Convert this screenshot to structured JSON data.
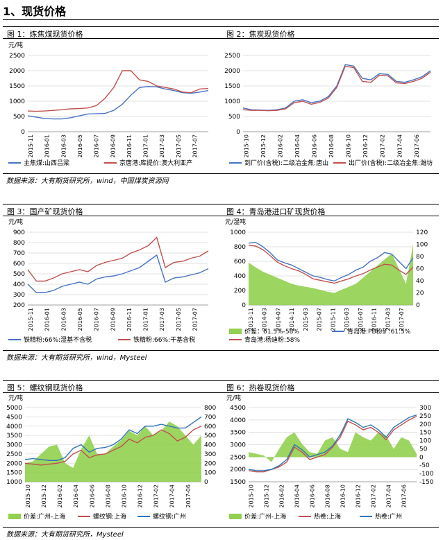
{
  "heading": "1、现货价格",
  "sources": [
    "数据来源：大有期货研究所，wind，中国煤炭资源网",
    "数据来源：大有期货研究所，wind，Mysteel",
    "数据来源：大有期货研究所，Mysteel"
  ],
  "chart_data": [
    {
      "id": "c1",
      "type": "line",
      "title": "图 1：炼焦煤现货价格",
      "unit": "元/吨",
      "ylim": [
        0,
        2500
      ],
      "yticks": [
        0,
        500,
        1000,
        1500,
        2000,
        2500
      ],
      "xticks": [
        "2015-11",
        "2016-01",
        "2016-03",
        "2016-05",
        "2016-07",
        "2016-09",
        "2016-11",
        "2017-01",
        "2017-03",
        "2017-05",
        "2017-07"
      ],
      "n": 22,
      "series": [
        {
          "name": "主焦煤:山西吕梁",
          "color": "#4472c4",
          "values": [
            520,
            480,
            430,
            420,
            420,
            460,
            520,
            580,
            590,
            600,
            700,
            900,
            1200,
            1450,
            1480,
            1470,
            1400,
            1350,
            1280,
            1260,
            1300,
            1350
          ]
        },
        {
          "name": "京唐港:库提价:澳大利亚产",
          "color": "#c0504d",
          "values": [
            680,
            670,
            680,
            700,
            720,
            750,
            760,
            780,
            860,
            1100,
            1450,
            2000,
            2000,
            1700,
            1650,
            1500,
            1450,
            1400,
            1300,
            1280,
            1400,
            1420
          ]
        }
      ]
    },
    {
      "id": "c2",
      "type": "line",
      "title": "图 2：焦炭现货价格",
      "unit": "",
      "ylim": [
        0,
        2500
      ],
      "yticks": [
        0,
        500,
        1000,
        1500,
        2000,
        2500
      ],
      "xticks": [
        "2015-10",
        "2015-12",
        "2016-02",
        "2016-04",
        "2016-06",
        "2016-08",
        "2016-10",
        "2016-12",
        "2017-02",
        "2017-04",
        "2017-06"
      ],
      "n": 23,
      "series": [
        {
          "name": "到厂价(含税):二级冶金焦:唐山",
          "color": "#4472c4",
          "values": [
            780,
            720,
            710,
            700,
            720,
            780,
            1000,
            1050,
            950,
            1000,
            1150,
            1500,
            2200,
            2150,
            1750,
            1700,
            1900,
            1880,
            1650,
            1620,
            1700,
            1800,
            2000
          ]
        },
        {
          "name": "出厂价(含税):二级冶金焦:潍坊",
          "color": "#c0504d",
          "values": [
            720,
            700,
            700,
            690,
            700,
            750,
            950,
            1000,
            900,
            960,
            1100,
            1450,
            2150,
            2100,
            1650,
            1620,
            1850,
            1830,
            1600,
            1580,
            1650,
            1750,
            1950
          ]
        }
      ]
    },
    {
      "id": "c3",
      "type": "line",
      "title": "图 3：国产矿现货价格",
      "unit": "元/吨",
      "ylim": [
        200,
        900
      ],
      "yticks": [
        200,
        300,
        400,
        500,
        600,
        700,
        800,
        900
      ],
      "xticks": [
        "2015-11",
        "2016-01",
        "2016-03",
        "2016-05",
        "2016-07",
        "2016-09",
        "2016-11",
        "2017-01",
        "2017-03",
        "2017-05",
        "2017-07"
      ],
      "n": 22,
      "series": [
        {
          "name": "铁精粉:66%:湿基不含税",
          "color": "#4472c4",
          "values": [
            400,
            320,
            320,
            340,
            380,
            400,
            420,
            400,
            450,
            470,
            480,
            500,
            530,
            560,
            620,
            680,
            420,
            460,
            470,
            490,
            510,
            550
          ]
        },
        {
          "name": "铁精粉:66%:干基含税",
          "color": "#c0504d",
          "values": [
            540,
            430,
            430,
            460,
            500,
            520,
            540,
            520,
            580,
            610,
            630,
            650,
            700,
            730,
            770,
            850,
            560,
            610,
            620,
            650,
            670,
            720
          ]
        }
      ]
    },
    {
      "id": "c4",
      "type": "line",
      "title": "图 4：青岛港进口矿现货价格",
      "unit": "元/湿吨",
      "ylim": [
        0,
        1000
      ],
      "yticks": [
        0,
        200,
        400,
        600,
        800,
        1000
      ],
      "y2lim": [
        0,
        120
      ],
      "y2ticks": [
        0,
        20,
        40,
        60,
        80,
        100,
        120
      ],
      "xticks": [
        "2013-11",
        "2014-03",
        "2014-07",
        "2014-11",
        "2015-03",
        "2015-07",
        "2015-11",
        "2016-03",
        "2016-07",
        "2016-11",
        "2017-03",
        "2017-07"
      ],
      "n": 24,
      "series": [
        {
          "name": "价差：61.5%-58%",
          "color": "#92d050",
          "axis": "right",
          "kind": "area",
          "values": [
            70,
            62,
            55,
            50,
            45,
            40,
            35,
            32,
            30,
            28,
            25,
            22,
            20,
            25,
            30,
            35,
            45,
            55,
            65,
            75,
            85,
            60,
            35,
            100
          ]
        },
        {
          "name": "青岛港:PB粉矿:61.5%",
          "color": "#4472c4",
          "values": [
            850,
            860,
            800,
            720,
            620,
            580,
            550,
            500,
            450,
            400,
            380,
            350,
            330,
            380,
            420,
            480,
            520,
            600,
            650,
            720,
            700,
            600,
            500,
            650
          ]
        },
        {
          "name": "青岛港:杨迪粉:58%",
          "color": "#c0504d",
          "values": [
            820,
            810,
            760,
            680,
            590,
            540,
            500,
            470,
            420,
            360,
            340,
            320,
            300,
            330,
            360,
            400,
            430,
            480,
            520,
            560,
            550,
            480,
            420,
            520
          ]
        }
      ]
    },
    {
      "id": "c5",
      "type": "line",
      "title": "图 5：螺纹钢现货价格",
      "unit": "元/吨",
      "ylim": [
        1000,
        5000
      ],
      "yticks": [
        1000,
        1500,
        2000,
        2500,
        3000,
        3500,
        4000,
        4500,
        5000
      ],
      "y2lim": [
        0,
        800
      ],
      "y2ticks": [
        0,
        100,
        200,
        300,
        400,
        500,
        600,
        700,
        800
      ],
      "xticks": [
        "2015-10",
        "2015-12",
        "2016-02",
        "2016-04",
        "2016-06",
        "2016-08",
        "2016-10",
        "2016-12",
        "2017-02",
        "2017-04",
        "2017-06"
      ],
      "n": 23,
      "series": [
        {
          "name": "价差:广州-上海",
          "color": "#92d050",
          "axis": "right",
          "kind": "area",
          "values": [
            200,
            220,
            300,
            380,
            400,
            200,
            150,
            350,
            500,
            300,
            300,
            380,
            450,
            550,
            500,
            600,
            500,
            550,
            650,
            600,
            500,
            400,
            500
          ]
        },
        {
          "name": "螺纹钢:上海",
          "color": "#c0504d",
          "values": [
            2000,
            1950,
            1900,
            1950,
            2000,
            2100,
            2500,
            2700,
            2300,
            2450,
            2500,
            2700,
            2900,
            3300,
            3100,
            3400,
            3500,
            3800,
            3600,
            3200,
            3400,
            3800,
            4000
          ]
        },
        {
          "name": "螺纹钢:广州",
          "color": "#2e75b6",
          "values": [
            2200,
            2250,
            2200,
            2150,
            2150,
            2300,
            2800,
            3000,
            2600,
            2800,
            2850,
            3000,
            3300,
            3800,
            3600,
            4000,
            4000,
            4100,
            4000,
            3900,
            3900,
            4200,
            4500
          ]
        }
      ]
    },
    {
      "id": "c6",
      "type": "line",
      "title": "图 6：热卷现货价格",
      "unit": "元/吨",
      "ylim": [
        1500,
        4500
      ],
      "yticks": [
        1500,
        2000,
        2500,
        3000,
        3500,
        4000,
        4500
      ],
      "y2lim": [
        -150,
        300
      ],
      "y2ticks": [
        -150,
        -100,
        -50,
        0,
        50,
        100,
        150,
        200,
        250,
        300
      ],
      "xticks": [
        "2015-10",
        "2015-12",
        "2016-02",
        "2016-04",
        "2016-06",
        "2016-08",
        "2016-10",
        "2016-12",
        "2017-02",
        "2017-04",
        "2017-06"
      ],
      "n": 23,
      "series": [
        {
          "name": "价差:广州-上海",
          "color": "#92d050",
          "axis": "right",
          "kind": "area",
          "values": [
            30,
            20,
            10,
            -30,
            50,
            120,
            150,
            80,
            30,
            20,
            100,
            120,
            50,
            30,
            150,
            120,
            100,
            150,
            130,
            50,
            120,
            100,
            20
          ]
        },
        {
          "name": "热卷:上海",
          "color": "#c0504d",
          "values": [
            1950,
            1900,
            1900,
            2000,
            2100,
            2300,
            2900,
            2700,
            2400,
            2500,
            2600,
            2900,
            3300,
            3950,
            3800,
            3600,
            3700,
            3500,
            3200,
            3600,
            3800,
            4000,
            4150
          ]
        },
        {
          "name": "热卷:广州",
          "color": "#2e75b6",
          "values": [
            2000,
            1950,
            1950,
            2000,
            2150,
            2400,
            3000,
            2800,
            2500,
            2600,
            2700,
            2950,
            3400,
            4050,
            3900,
            3700,
            3800,
            3600,
            3300,
            3700,
            3900,
            4100,
            4200
          ]
        }
      ]
    }
  ]
}
